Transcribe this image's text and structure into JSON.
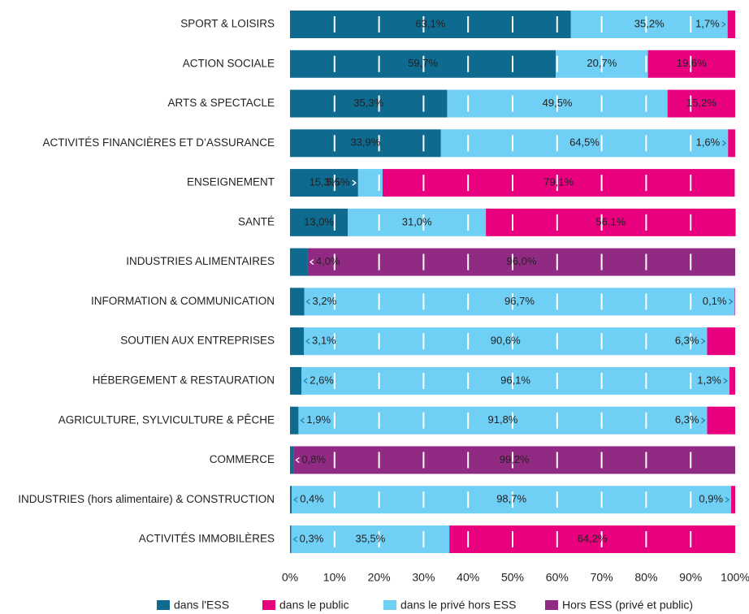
{
  "chart_data": {
    "type": "stacked_barh",
    "categories": [
      "SPORT & LOISIRS",
      "ACTION SOCIALE",
      "ARTS & SPECTACLE",
      "ACTIVITÉS FINANCIÈRES ET D’ASSURANCE",
      "ENSEIGNEMENT",
      "SANTÉ",
      "INDUSTRIES ALIMENTAIRES",
      "INFORMATION & COMMUNICATION",
      "SOUTIEN AUX ENTREPRISES",
      "HÉBERGEMENT & RESTAURATION",
      "AGRICULTURE, SYLVICULTURE & PÊCHE",
      "COMMERCE",
      "INDUSTRIES (hors alimentaire) & CONSTRUCTION",
      "ACTIVITÉS IMMOBILÈRES"
    ],
    "series": [
      {
        "name": "dans l'ESS",
        "color": "#0f6a8f",
        "values": [
          63.1,
          59.7,
          35.3,
          33.9,
          15.3,
          13.0,
          4.0,
          3.2,
          3.1,
          2.6,
          1.9,
          0.8,
          0.4,
          0.3
        ],
        "value_labels": [
          "63,1%",
          "59,7%",
          "35,3%",
          "33,9%",
          "15,3%",
          "13,0%",
          "4,0%",
          "3,2%",
          "3,1%",
          "2,6%",
          "1,9%",
          "0,8%",
          "0,4%",
          "0,3%"
        ]
      },
      {
        "name": "dans le public",
        "color": "#e8007f",
        "values": [
          1.7,
          19.6,
          15.2,
          1.6,
          79.1,
          56.1,
          null,
          0.1,
          6.3,
          1.3,
          6.3,
          null,
          0.9,
          64.2
        ],
        "value_labels": [
          "1,7%",
          "19,6%",
          "15,2%",
          "1,6%",
          "79,1%",
          "56,1%",
          null,
          "0,1%",
          "6,3%",
          "1,3%",
          "6,3%",
          null,
          "0,9%",
          "64,2%"
        ]
      },
      {
        "name": "dans le privé hors ESS",
        "color": "#6fcff5",
        "values": [
          35.2,
          20.7,
          49.5,
          64.5,
          5.5,
          31.0,
          null,
          96.7,
          90.6,
          96.1,
          91.8,
          null,
          98.7,
          35.5
        ],
        "value_labels": [
          "35,2%",
          "20,7%",
          "49,5%",
          "64,5%",
          "5,5%",
          "31,0%",
          null,
          "96,7%",
          "90,6%",
          "96,1%",
          "91,8%",
          null,
          "98,7%",
          "35,5%"
        ]
      },
      {
        "name": "Hors ESS (privé et public)",
        "color": "#912a83",
        "values": [
          null,
          null,
          null,
          null,
          null,
          null,
          96.0,
          null,
          null,
          null,
          null,
          99.2,
          null,
          null
        ],
        "value_labels": [
          null,
          null,
          null,
          null,
          null,
          null,
          "96,0%",
          null,
          null,
          null,
          null,
          "99,2%",
          null,
          null
        ]
      }
    ],
    "xlim": [
      0,
      100
    ],
    "xticks": [
      {
        "value": 0,
        "label": "0%"
      },
      {
        "value": 10,
        "label": "10%"
      },
      {
        "value": 20,
        "label": "20%"
      },
      {
        "value": 30,
        "label": "30%"
      },
      {
        "value": 40,
        "label": "40%"
      },
      {
        "value": 50,
        "label": "50%"
      },
      {
        "value": 60,
        "label": "60%"
      },
      {
        "value": 70,
        "label": "70%"
      },
      {
        "value": 80,
        "label": "80%"
      },
      {
        "value": 90,
        "label": "90%"
      },
      {
        "value": 100,
        "label": "100%"
      }
    ],
    "grid": true,
    "legend": "bottom"
  }
}
